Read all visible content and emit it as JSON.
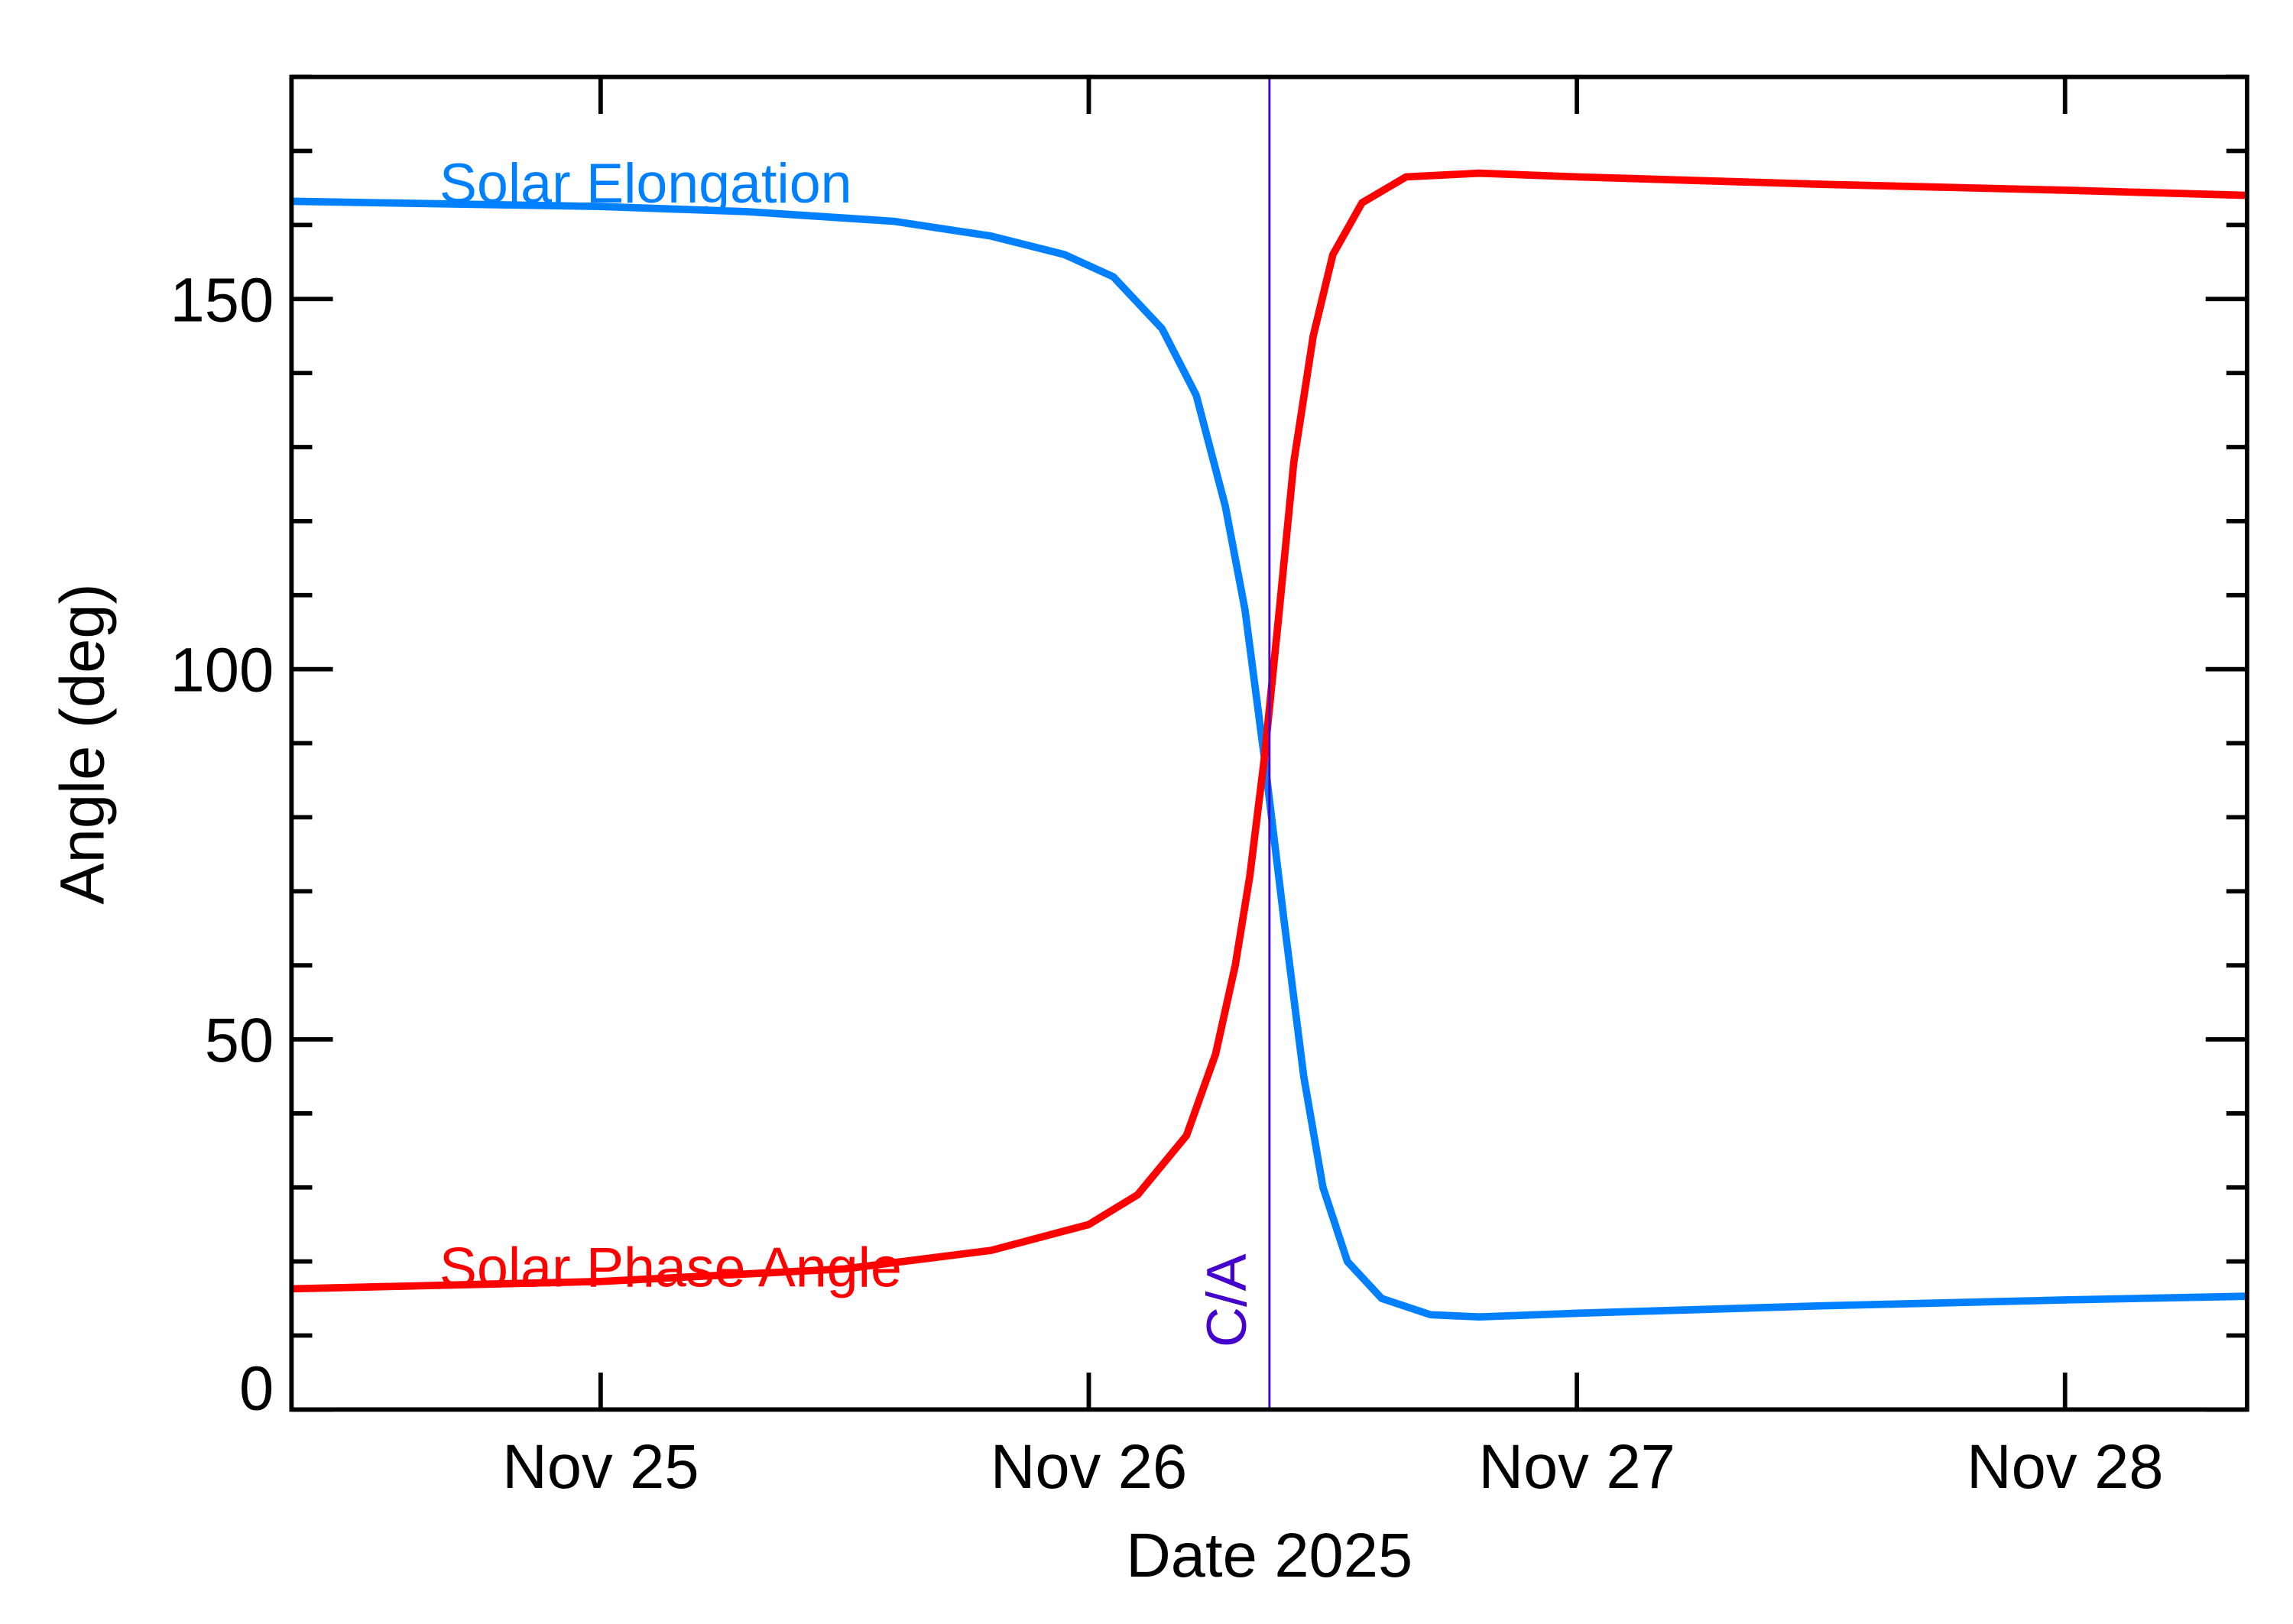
{
  "chart_data": {
    "type": "line",
    "title": "",
    "xlabel": "Date 2025",
    "ylabel": "Angle (deg)",
    "xlim": [
      "2025-11-24T08:48",
      "2025-11-28T08:57"
    ],
    "ylim": [
      0,
      180
    ],
    "x_ticks": [
      {
        "label": "Nov 25",
        "value": "2025-11-25T00:00"
      },
      {
        "label": "Nov 26",
        "value": "2025-11-26T00:00"
      },
      {
        "label": "Nov 27",
        "value": "2025-11-27T00:00"
      },
      {
        "label": "Nov 28",
        "value": "2025-11-28T00:00"
      }
    ],
    "y_ticks": [
      0,
      50,
      100,
      150
    ],
    "y_minor_step": 10,
    "grid": false,
    "annotations": [
      {
        "label": "C/A",
        "x": "2025-11-26T08:53",
        "color": "#4400cc"
      }
    ],
    "series": [
      {
        "name": "Solar Elongation",
        "color": "#0080ff",
        "points": [
          [
            "2025-11-24T08:48",
            163.2
          ],
          [
            "2025-11-25T00:00",
            162.5
          ],
          [
            "2025-11-25T07:12",
            161.8
          ],
          [
            "2025-11-25T14:24",
            160.5
          ],
          [
            "2025-11-25T19:12",
            158.5
          ],
          [
            "2025-11-25T22:48",
            156
          ],
          [
            "2025-11-26T01:12",
            153
          ],
          [
            "2025-11-26T03:36",
            146
          ],
          [
            "2025-11-26T05:17",
            137
          ],
          [
            "2025-11-26T06:43",
            122
          ],
          [
            "2025-11-26T07:41",
            108
          ],
          [
            "2025-11-26T08:38",
            88
          ],
          [
            "2025-11-26T09:36",
            66
          ],
          [
            "2025-11-26T10:34",
            45
          ],
          [
            "2025-11-26T11:31",
            30
          ],
          [
            "2025-11-26T12:43",
            20
          ],
          [
            "2025-11-26T14:24",
            15
          ],
          [
            "2025-11-26T16:48",
            12.8
          ],
          [
            "2025-11-26T19:12",
            12.5
          ],
          [
            "2025-11-27T00:00",
            13
          ],
          [
            "2025-11-27T12:00",
            14
          ],
          [
            "2025-11-28T00:00",
            14.8
          ],
          [
            "2025-11-28T08:57",
            15.3
          ]
        ]
      },
      {
        "name": "Solar Phase Angle",
        "color": "#ff0000",
        "points": [
          [
            "2025-11-24T08:48",
            16.3
          ],
          [
            "2025-11-25T00:00",
            17.3
          ],
          [
            "2025-11-25T12:00",
            19
          ],
          [
            "2025-11-25T19:12",
            21.5
          ],
          [
            "2025-11-26T00:00",
            25
          ],
          [
            "2025-11-26T02:24",
            29
          ],
          [
            "2025-11-26T04:48",
            37
          ],
          [
            "2025-11-26T06:14",
            48
          ],
          [
            "2025-11-26T07:12",
            60
          ],
          [
            "2025-11-26T07:55",
            72
          ],
          [
            "2025-11-26T08:38",
            88
          ],
          [
            "2025-11-26T09:22",
            108
          ],
          [
            "2025-11-26T10:05",
            128
          ],
          [
            "2025-11-26T11:02",
            145
          ],
          [
            "2025-11-26T12:00",
            156
          ],
          [
            "2025-11-26T13:26",
            163
          ],
          [
            "2025-11-26T15:36",
            166.5
          ],
          [
            "2025-11-26T19:12",
            167
          ],
          [
            "2025-11-27T00:00",
            166.5
          ],
          [
            "2025-11-27T12:00",
            165.5
          ],
          [
            "2025-11-28T00:00",
            164.7
          ],
          [
            "2025-11-28T08:57",
            164
          ]
        ]
      }
    ]
  }
}
